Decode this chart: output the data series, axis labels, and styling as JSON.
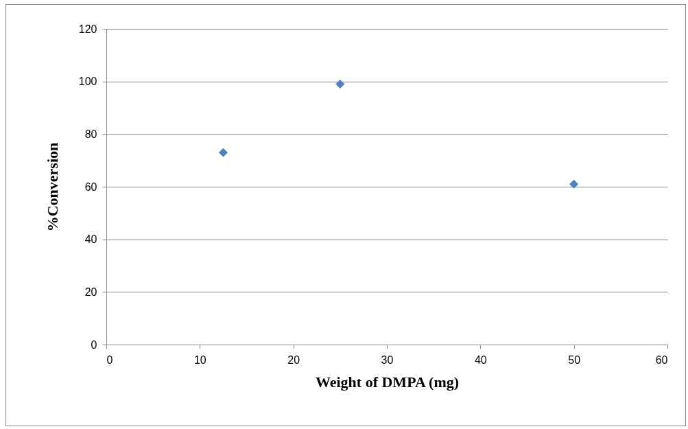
{
  "chart_data": {
    "type": "scatter",
    "xlabel": "Weight of DMPA (mg)",
    "ylabel": "%Conversion",
    "x": [
      12.5,
      25,
      50
    ],
    "series": [
      {
        "color": "#4f81bd",
        "values": [
          73,
          99,
          61
        ]
      }
    ],
    "xlim": [
      0,
      60
    ],
    "xticks": [
      0,
      10,
      20,
      30,
      40,
      50,
      60
    ],
    "ylim": [
      0,
      120
    ],
    "yticks": [
      0,
      20,
      40,
      60,
      80,
      100,
      120
    ],
    "grid": "y",
    "marker": "diamond"
  }
}
